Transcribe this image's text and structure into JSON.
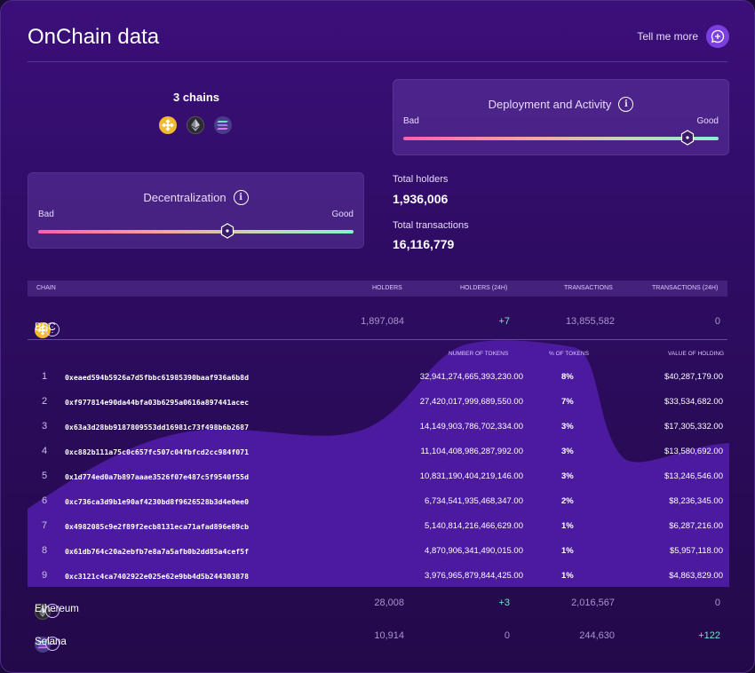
{
  "header": {
    "title": "OnChain data",
    "tell_me_more": "Tell me more"
  },
  "chains": {
    "count_label": "3 chains",
    "icons": [
      "bnb-icon",
      "ethereum-icon",
      "solana-icon"
    ]
  },
  "deployment": {
    "title": "Deployment and Activity",
    "bad": "Bad",
    "good": "Good",
    "level": 0.9
  },
  "decentralization": {
    "title": "Decentralization",
    "bad": "Bad",
    "good": "Good",
    "level": 0.6
  },
  "totals": {
    "holders_label": "Total holders",
    "holders_value": "1,936,006",
    "transactions_label": "Total transactions",
    "transactions_value": "16,116,779"
  },
  "table": {
    "headers": [
      "CHAIN",
      "HOLDERS",
      "HOLDERS (24H)",
      "TRANSACTIONS",
      "TRANSACTIONS (24H)"
    ],
    "rows": [
      {
        "name": "BSC",
        "holders": "1,897,084",
        "holders24": "+7",
        "tx": "13,855,582",
        "tx24": "0"
      },
      {
        "name": "Ethereum",
        "holders": "28,008",
        "holders24": "+3",
        "tx": "2,016,567",
        "tx24": "0"
      },
      {
        "name": "Solana",
        "holders": "10,914",
        "holders24": "0",
        "tx": "244,630",
        "tx24": "+122"
      }
    ]
  },
  "top_holders": {
    "headers": {
      "tokens": "NUMBER OF TOKENS",
      "pct": "% OF TOKENS",
      "value": "VALUE OF HOLDING"
    },
    "rows": [
      {
        "idx": "1",
        "addr": "0xeaed594b5926a7d5fbbc61985390baaf936a6b8d",
        "tokens": "32,941,274,665,393,230.00",
        "pct": "8%",
        "value": "$40,287,179.00"
      },
      {
        "idx": "2",
        "addr": "0xf977814e90da44bfa03b6295a0616a897441acec",
        "tokens": "27,420,017,999,689,550.00",
        "pct": "7%",
        "value": "$33,534,682.00"
      },
      {
        "idx": "3",
        "addr": "0x63a3d28bb9187809553dd16981c73f498b6b2687",
        "tokens": "14,149,903,786,702,334.00",
        "pct": "3%",
        "value": "$17,305,332.00"
      },
      {
        "idx": "4",
        "addr": "0xc882b111a75c0c657fc507c04fbfcd2cc984f071",
        "tokens": "11,104,408,986,287,992.00",
        "pct": "3%",
        "value": "$13,580,692.00"
      },
      {
        "idx": "5",
        "addr": "0x1d774ed0a7b897aaae3526f07e487c5f9540f55d",
        "tokens": "10,831,190,404,219,146.00",
        "pct": "3%",
        "value": "$13,246,546.00"
      },
      {
        "idx": "6",
        "addr": "0xc736ca3d9b1e90af4230bd8f9626528b3d4e0ee0",
        "tokens": "6,734,541,935,468,347.00",
        "pct": "2%",
        "value": "$8,236,345.00"
      },
      {
        "idx": "7",
        "addr": "0x4982085c9e2f89f2ecb8131eca71afad896e89cb",
        "tokens": "5,140,814,216,466,629.00",
        "pct": "1%",
        "value": "$6,287,216.00"
      },
      {
        "idx": "8",
        "addr": "0x61db764c20a2ebfb7e8a7a5afb0b2dd85a4cef5f",
        "tokens": "4,870,906,341,490,015.00",
        "pct": "1%",
        "value": "$5,957,118.00"
      },
      {
        "idx": "9",
        "addr": "0xc3121c4ca7402922e025e62e9bb4d5b244303878",
        "tokens": "3,976,965,879,844,425.00",
        "pct": "1%",
        "value": "$4,863,829.00"
      }
    ]
  },
  "colors": {
    "accent": "#7b3fe0",
    "positive": "#7de3c9",
    "bnb": "#f3ba2f"
  }
}
